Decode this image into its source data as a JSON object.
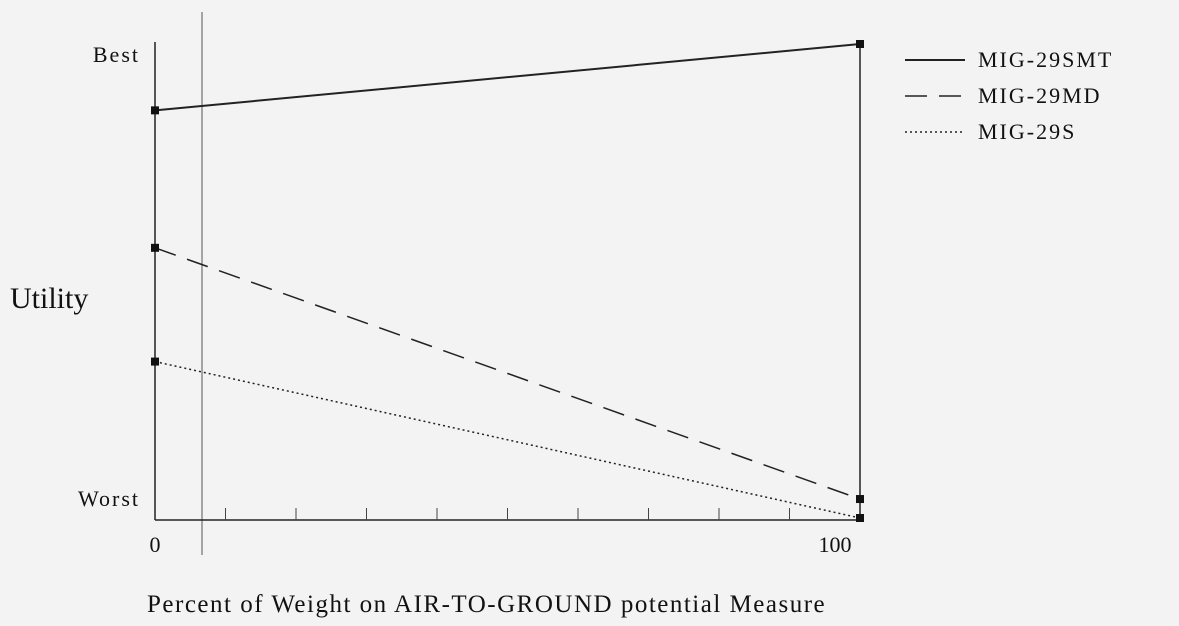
{
  "chart_data": {
    "type": "line",
    "x": [
      0,
      100
    ],
    "xlim": [
      0,
      100
    ],
    "ylim": [
      0,
      1
    ],
    "x_tick_labels": [
      "0",
      "100"
    ],
    "y_tick_labels": {
      "top": "Best",
      "bottom": "Worst"
    },
    "ylabel": "Utility",
    "xlabel": "Percent of Weight on AIR-TO-GROUND potential Measure",
    "title": "",
    "grid": false,
    "legend_position": "top-right",
    "series": [
      {
        "name": "MIG-29SMT",
        "values": [
          0.86,
          1.0
        ],
        "style": "solid"
      },
      {
        "name": "MIG-29MD",
        "values": [
          0.57,
          0.04
        ],
        "style": "dashed"
      },
      {
        "name": "MIG-29S",
        "values": [
          0.33,
          0.0
        ],
        "style": "dotted"
      }
    ]
  }
}
